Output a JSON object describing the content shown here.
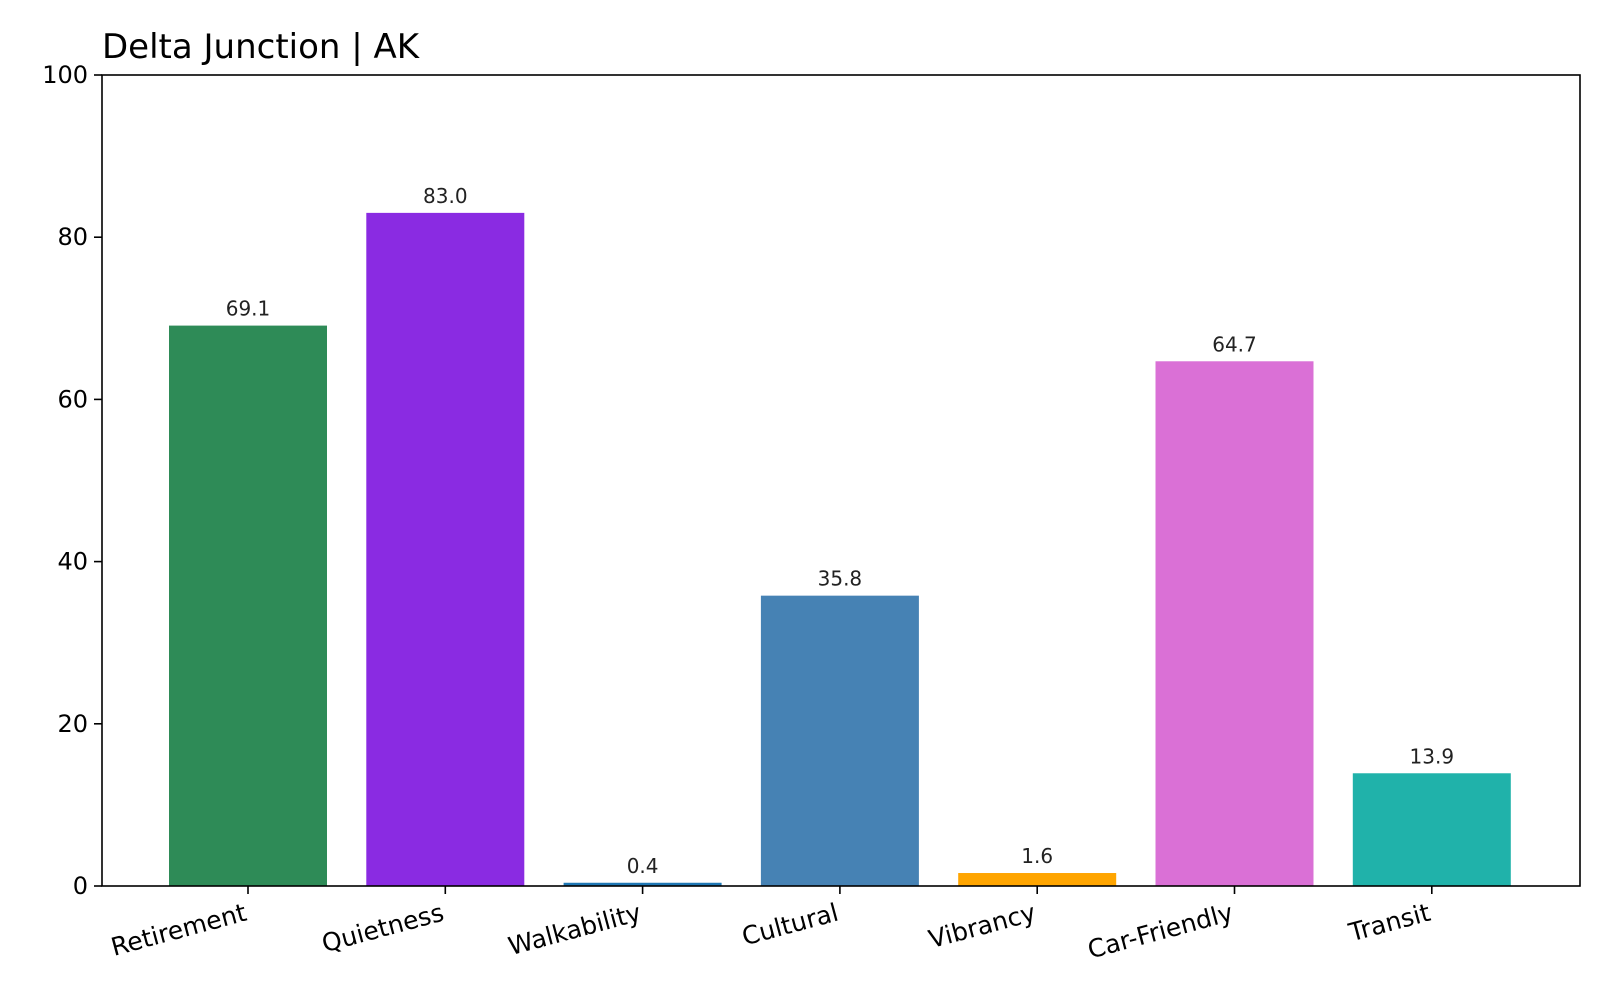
{
  "chart_data": {
    "type": "bar",
    "title": "Delta Junction | AK",
    "xlabel": "",
    "ylabel": "",
    "ylim": [
      0,
      100
    ],
    "yticks": [
      0,
      20,
      40,
      60,
      80,
      100
    ],
    "grid": false,
    "categories": [
      "Retirement",
      "Quietness",
      "Walkability",
      "Cultural",
      "Vibrancy",
      "Car-Friendly",
      "Transit"
    ],
    "values": [
      69.1,
      83.0,
      0.4,
      35.8,
      1.6,
      64.7,
      13.9
    ],
    "value_labels": [
      "69.1",
      "83.0",
      "0.4",
      "35.8",
      "1.6",
      "64.7",
      "13.9"
    ],
    "colors": [
      "#2e8b57",
      "#8a2be2",
      "#1f77b4",
      "#4682b4",
      "#ffa500",
      "#da70d6",
      "#20b2aa"
    ]
  }
}
